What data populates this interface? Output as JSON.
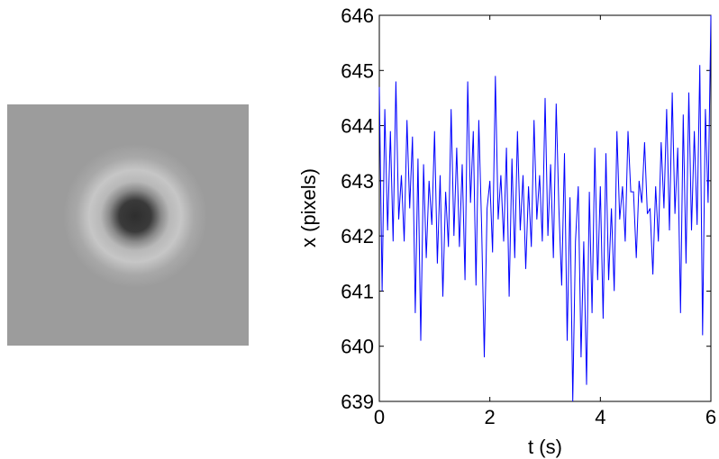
{
  "image_panel": {
    "description_icon": "particle-ring-icon",
    "colors": {
      "background": "#9c9c9c",
      "ring": "#c4c4c4",
      "core": "#2e2e2e"
    }
  },
  "chart_data": {
    "type": "line",
    "xlabel": "t (s)",
    "ylabel": "x (pixels)",
    "xlim": [
      0,
      6
    ],
    "ylim": [
      639,
      646
    ],
    "xticks": [
      0,
      2,
      4,
      6
    ],
    "yticks": [
      639,
      640,
      641,
      642,
      643,
      644,
      645,
      646
    ],
    "grid": false,
    "series": [
      {
        "color": "#0000ff",
        "x": [
          0.0,
          0.05,
          0.1,
          0.15,
          0.2,
          0.25,
          0.3,
          0.35,
          0.4,
          0.45,
          0.5,
          0.55,
          0.6,
          0.65,
          0.7,
          0.75,
          0.8,
          0.85,
          0.9,
          0.95,
          1.0,
          1.05,
          1.1,
          1.15,
          1.2,
          1.25,
          1.3,
          1.35,
          1.4,
          1.45,
          1.5,
          1.55,
          1.6,
          1.65,
          1.7,
          1.75,
          1.8,
          1.85,
          1.9,
          1.95,
          2.0,
          2.05,
          2.1,
          2.15,
          2.2,
          2.25,
          2.3,
          2.35,
          2.4,
          2.45,
          2.5,
          2.55,
          2.6,
          2.65,
          2.7,
          2.75,
          2.8,
          2.85,
          2.9,
          2.95,
          3.0,
          3.05,
          3.1,
          3.15,
          3.2,
          3.25,
          3.3,
          3.35,
          3.4,
          3.45,
          3.5,
          3.55,
          3.6,
          3.65,
          3.7,
          3.75,
          3.8,
          3.85,
          3.9,
          3.95,
          4.0,
          4.05,
          4.1,
          4.15,
          4.2,
          4.25,
          4.3,
          4.35,
          4.4,
          4.45,
          4.5,
          4.55,
          4.6,
          4.65,
          4.7,
          4.75,
          4.8,
          4.85,
          4.9,
          4.95,
          5.0,
          5.05,
          5.1,
          5.15,
          5.2,
          5.25,
          5.3,
          5.35,
          5.4,
          5.45,
          5.5,
          5.55,
          5.6,
          5.65,
          5.7,
          5.75,
          5.8,
          5.85,
          5.9,
          5.95,
          6.0
        ],
        "y": [
          644.7,
          641.0,
          644.3,
          642.1,
          643.9,
          641.9,
          644.8,
          642.3,
          643.1,
          641.9,
          644.1,
          642.5,
          643.8,
          640.6,
          643.4,
          640.1,
          643.3,
          641.6,
          643.0,
          642.2,
          643.9,
          641.5,
          643.1,
          640.9,
          642.8,
          641.8,
          644.3,
          642.0,
          643.6,
          641.8,
          643.3,
          641.2,
          644.8,
          642.6,
          643.9,
          641.1,
          644.1,
          642.2,
          639.8,
          642.5,
          643.0,
          641.7,
          644.9,
          642.3,
          643.1,
          641.9,
          643.6,
          640.9,
          643.4,
          641.6,
          643.9,
          642.1,
          643.1,
          641.4,
          642.9,
          641.8,
          644.1,
          642.3,
          643.1,
          641.9,
          644.5,
          642.0,
          643.3,
          641.6,
          644.4,
          642.5,
          641.1,
          643.5,
          640.1,
          642.7,
          639.0,
          641.9,
          642.9,
          639.8,
          641.9,
          639.3,
          642.8,
          640.6,
          643.6,
          641.2,
          642.9,
          640.5,
          643.5,
          641.2,
          642.5,
          641.0,
          643.9,
          642.3,
          642.9,
          641.9,
          643.9,
          642.8,
          642.8,
          641.6,
          643.0,
          642.6,
          643.7,
          642.4,
          642.5,
          641.3,
          642.9,
          641.9,
          643.7,
          642.5,
          644.3,
          642.1,
          644.6,
          642.4,
          643.6,
          640.6,
          644.2,
          641.5,
          644.6,
          642.1,
          643.9,
          642.2,
          645.1,
          640.2,
          644.3,
          642.6,
          646.0
        ]
      }
    ]
  }
}
